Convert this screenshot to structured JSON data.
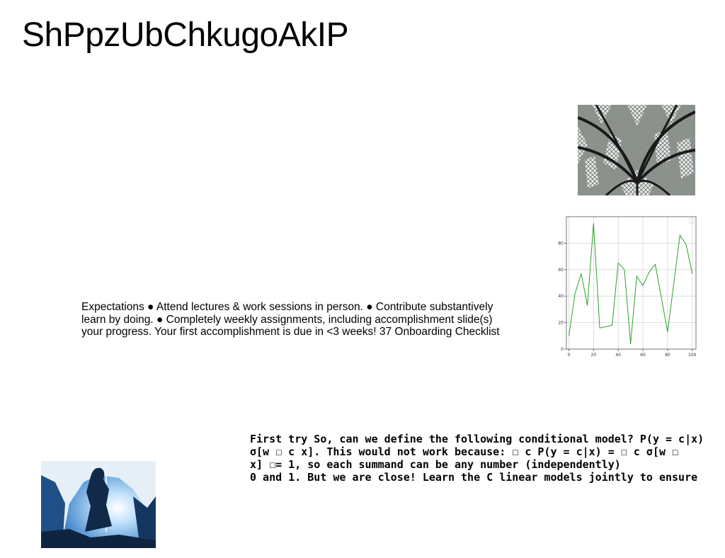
{
  "slide": {
    "title": "ShPpzUbChkugoAkIP"
  },
  "text_block_1": {
    "lines": [
      "Expectations ● Attend lectures & work sessions in person. ● Contribute substantively",
      "learn by doing. ● Completely weekly assignments, including accomplishment slide(s)",
      "your progress. Your first accomplishment is due in <3 weeks! 37 Onboarding Checklist"
    ]
  },
  "text_block_2": {
    "lines": [
      "First try So, can we define the following conditional model? P(y = c|x)",
      "σ[w ☐ c x]. This would not work because: ☐ c P(y = c|x) = ☐ c σ[w ☐",
      "x] ☐= 1, so each summand can be any number (independently)",
      "0 and 1. But we are close! Learn the C linear models jointly to ensure"
    ]
  },
  "chart_data": {
    "type": "line",
    "x": [
      0,
      5,
      10,
      15,
      20,
      25,
      35,
      40,
      45,
      50,
      55,
      60,
      65,
      70,
      80,
      90,
      95,
      100
    ],
    "series": [
      {
        "values": [
          10,
          42,
          57,
          33,
          95,
          16,
          18,
          65,
          60,
          4,
          55,
          48,
          58,
          64,
          13,
          86,
          79,
          57
        ],
        "color": "#2ca02c"
      }
    ],
    "xticks": [
      0,
      20,
      40,
      60,
      80,
      100
    ],
    "yticks": [
      0,
      20,
      40,
      60,
      80
    ],
    "xlim": [
      -2,
      103
    ],
    "ylim": [
      0,
      100
    ],
    "grid": true
  },
  "images": {
    "ceiling": "ceiling-photo",
    "figure": "sword-figure-photo"
  }
}
